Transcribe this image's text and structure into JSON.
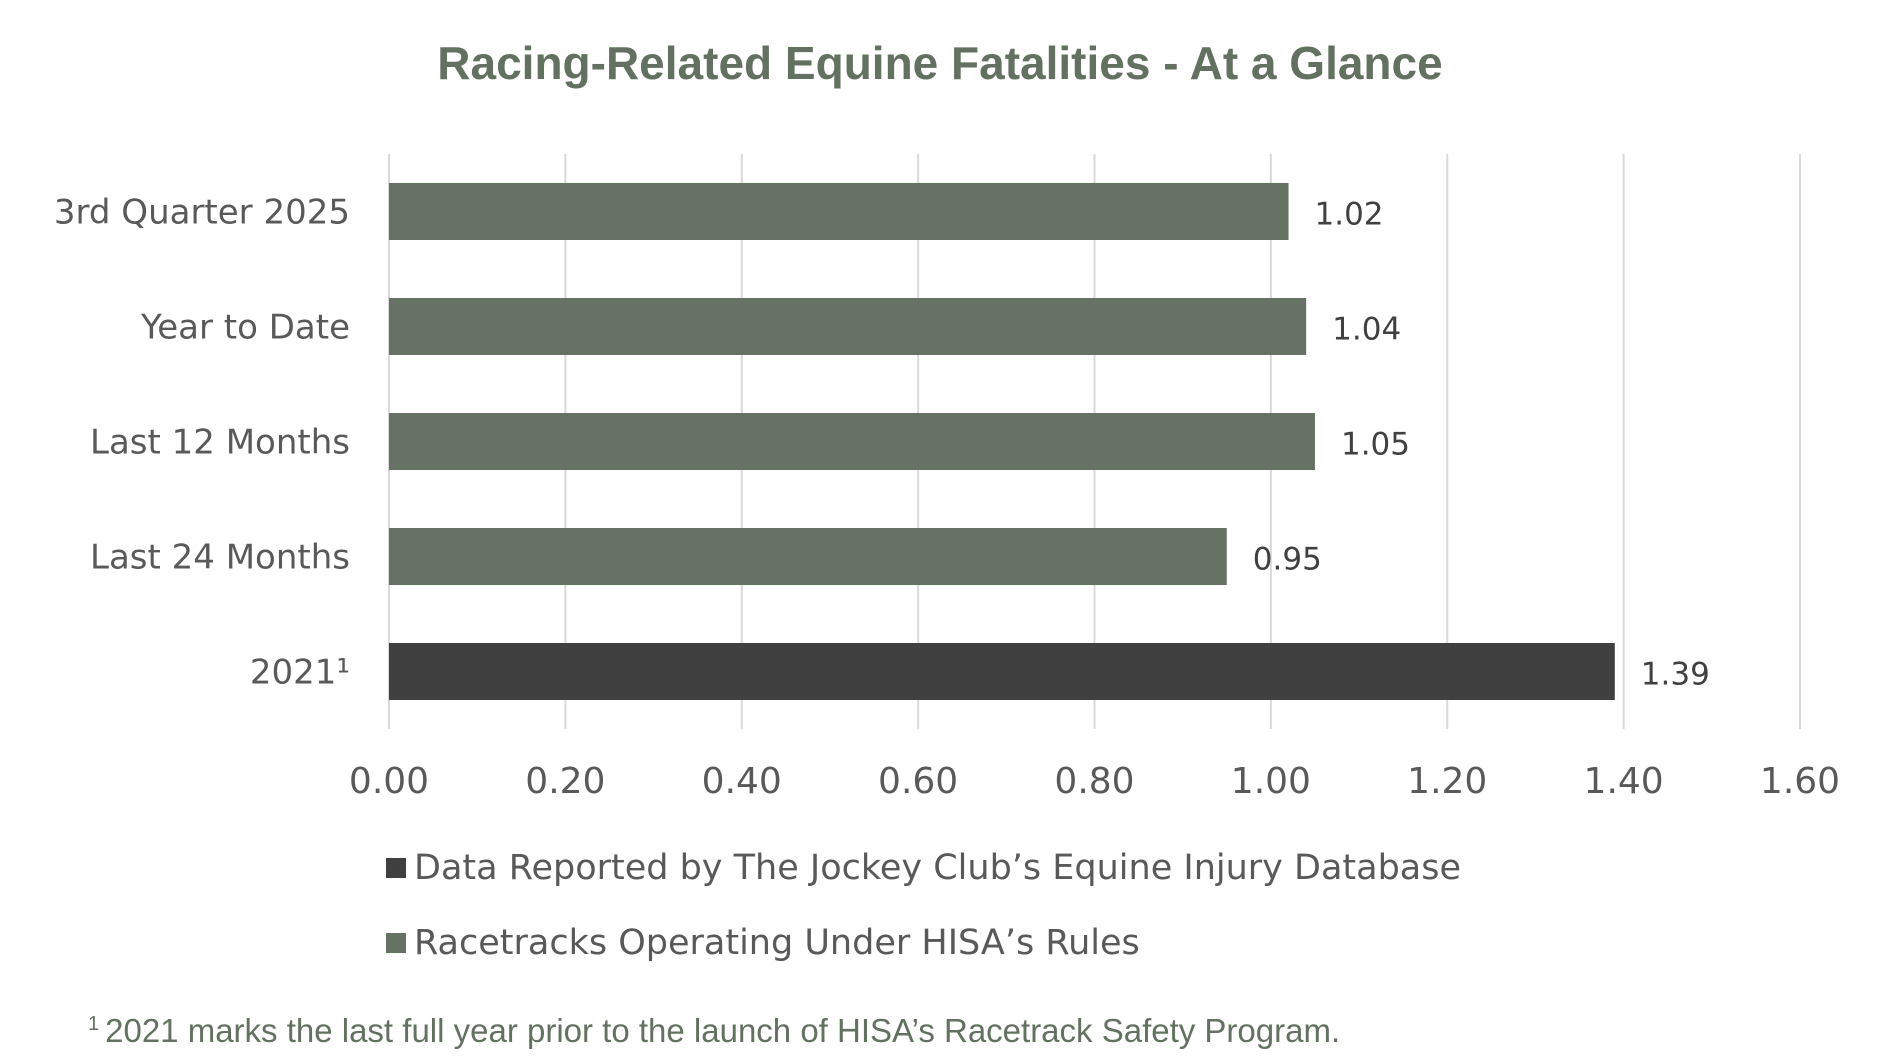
{
  "chart_data": {
    "type": "bar",
    "orientation": "horizontal",
    "title": "Racing-Related Equine Fatalities - At a Glance",
    "categories": [
      "3rd Quarter 2025",
      "Year to Date",
      "Last 12 Months",
      "Last 24 Months",
      "2021¹"
    ],
    "values": [
      1.02,
      1.04,
      1.05,
      0.95,
      1.39
    ],
    "data_labels": [
      "1.02",
      "1.04",
      "1.05",
      "0.95",
      "1.39"
    ],
    "bar_series": [
      "hisa",
      "hisa",
      "hisa",
      "hisa",
      "jockey"
    ],
    "xlim": [
      0,
      1.6
    ],
    "xticks": [
      "0.00",
      "0.20",
      "0.40",
      "0.60",
      "0.80",
      "1.00",
      "1.20",
      "1.40",
      "1.60"
    ],
    "grid": true,
    "legend_placement": "bottom",
    "series": [
      {
        "key": "jockey",
        "name": "Data Reported by The Jockey Club’s Equine Injury Database",
        "color": "#404040"
      },
      {
        "key": "hisa",
        "name": "Racetracks Operating Under HISA’s Rules",
        "color": "#667264"
      }
    ],
    "footnote_mark": "1",
    "footnote": "2021 marks the last full year prior to the launch of HISA’s Racetrack Safety Program."
  }
}
